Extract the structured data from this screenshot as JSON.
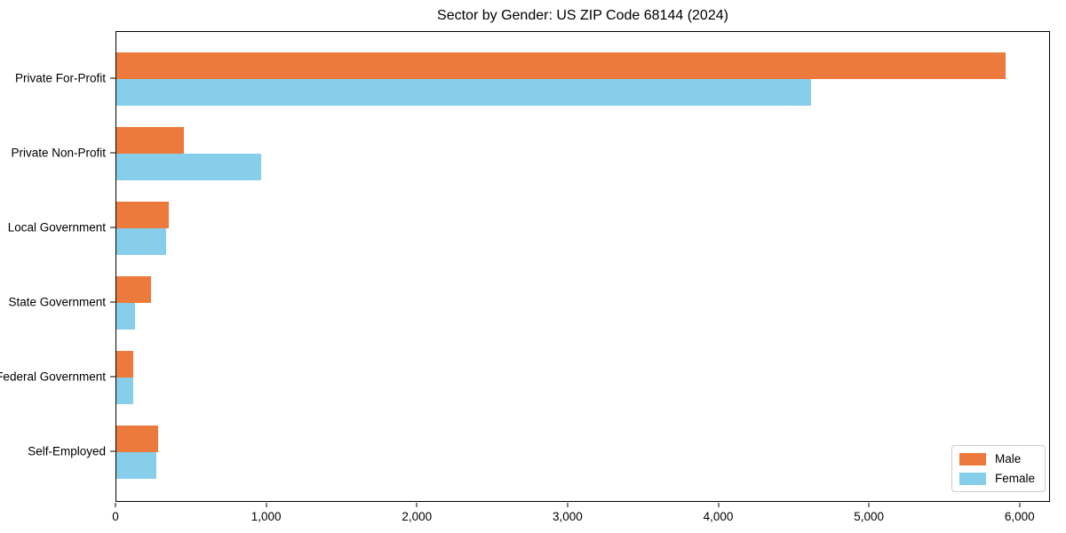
{
  "chart_data": {
    "type": "bar",
    "orientation": "horizontal",
    "title": "Sector by Gender: US ZIP Code 68144 (2024)",
    "categories": [
      "Private For-Profit",
      "Private Non-Profit",
      "Local Government",
      "State Government",
      "Federal Government",
      "Self-Employed"
    ],
    "series": [
      {
        "name": "Male",
        "color": "#EC7A3C",
        "values": [
          5900,
          450,
          350,
          230,
          110,
          275
        ]
      },
      {
        "name": "Female",
        "color": "#87CEEB",
        "values": [
          4610,
          960,
          330,
          125,
          110,
          265
        ]
      }
    ],
    "xlabel": "",
    "ylabel": "",
    "xlim": [
      0,
      6190
    ],
    "x_ticks": [
      0,
      1000,
      2000,
      3000,
      4000,
      5000,
      6000
    ],
    "x_tick_labels": [
      "0",
      "1,000",
      "2,000",
      "3,000",
      "4,000",
      "5,000",
      "6,000"
    ],
    "grid": false,
    "legend": {
      "position": "lower right"
    },
    "colors": {
      "spine": "#000000",
      "legend_border": "#cccccc",
      "background": "#ffffff"
    }
  }
}
